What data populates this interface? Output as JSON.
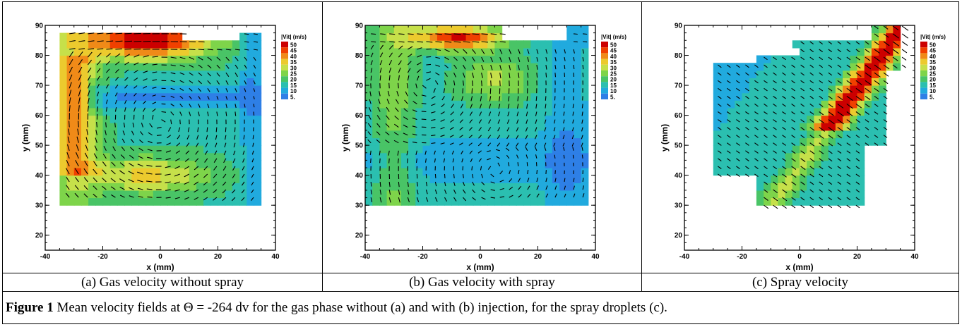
{
  "panels": [
    {
      "id": "a",
      "caption": "(a) Gas velocity without spray",
      "chart_data": {
        "type": "heatmap",
        "description_kind": "velocity vector field over colour map",
        "xlabel": "x (mm)",
        "ylabel": "y (mm)",
        "xlim": [
          -40,
          40
        ],
        "ylim": [
          15,
          90
        ],
        "xticks": [
          "-40",
          "-20",
          "0",
          "20",
          "40"
        ],
        "yticks": [
          "20",
          "30",
          "40",
          "50",
          "60",
          "70",
          "80",
          "90"
        ],
        "legend_title": "|Vit| (m/s)",
        "legend_levels": [
          "50",
          "45",
          "40",
          "35",
          "30",
          "25",
          "20",
          "15",
          "10",
          "5."
        ],
        "flow_description": "large clockwise recirculation, high speed jet along top",
        "colormap": [
          "#cc0000",
          "#f04000",
          "#f08a18",
          "#ecca2e",
          "#c6e04a",
          "#7ed44a",
          "#49c466",
          "#2bbfb0",
          "#21aade",
          "#2e7fe6"
        ]
      }
    },
    {
      "id": "b",
      "caption": "(b) Gas velocity with spray",
      "chart_data": {
        "type": "heatmap",
        "xlabel": "x (mm)",
        "ylabel": "y (mm)",
        "xlim": [
          -40,
          40
        ],
        "ylim": [
          15,
          90
        ],
        "xticks": [
          "-40",
          "-20",
          "0",
          "20",
          "40"
        ],
        "yticks": [
          "20",
          "30",
          "40",
          "50",
          "60",
          "70",
          "80",
          "90"
        ],
        "legend_title": "|Vit| (m/s)",
        "legend_levels": [
          "50",
          "45",
          "40",
          "35",
          "30",
          "25",
          "20",
          "15",
          "10",
          "5."
        ]
      }
    },
    {
      "id": "c",
      "caption": "(c) Spray velocity",
      "chart_data": {
        "type": "heatmap",
        "xlabel": "x (mm)",
        "ylabel": "y (mm)",
        "xlim": [
          -40,
          40
        ],
        "ylim": [
          15,
          90
        ],
        "xticks": [
          "-40",
          "-20",
          "0",
          "20",
          "40"
        ],
        "yticks": [
          "20",
          "30",
          "40",
          "50",
          "60",
          "70",
          "80",
          "90"
        ],
        "legend_title": "|Vit| (m/s)",
        "legend_levels": [
          "50",
          "45",
          "40",
          "35",
          "30",
          "25",
          "20",
          "15",
          "10",
          "5."
        ]
      }
    }
  ],
  "figure_caption": {
    "label": "Figure 1",
    "text": "  Mean velocity fields at Θ = -264 dv for the gas phase without (a) and with (b) injection, for the spray droplets (c)."
  }
}
